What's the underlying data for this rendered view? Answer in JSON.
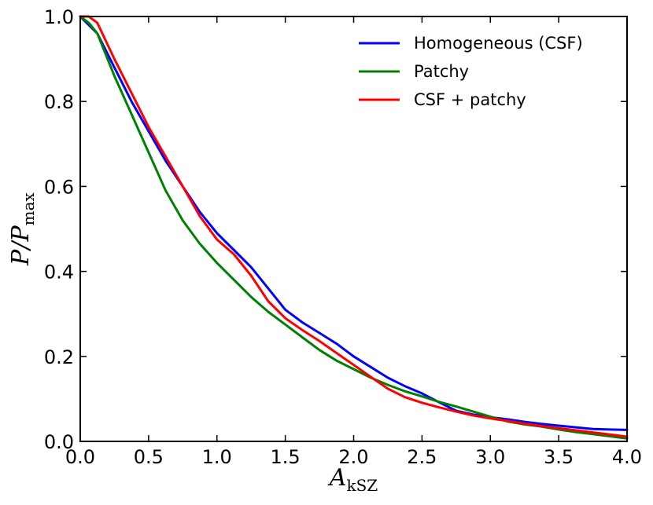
{
  "chart_data": {
    "type": "line",
    "title": "",
    "xlabel": "A",
    "xlabel_sub": "kSZ",
    "ylabel": "P/P",
    "ylabel_sub": "max",
    "xlim": [
      0.0,
      4.0
    ],
    "ylim": [
      0.0,
      1.0
    ],
    "xticks": [
      0.0,
      0.5,
      1.0,
      1.5,
      2.0,
      2.5,
      3.0,
      3.5,
      4.0
    ],
    "xtick_labels": [
      "0.0",
      "0.5",
      "1.0",
      "1.5",
      "2.0",
      "2.5",
      "3.0",
      "3.5",
      "4.0"
    ],
    "yticks": [
      0.0,
      0.2,
      0.4,
      0.6,
      0.8,
      1.0
    ],
    "ytick_labels": [
      "0.0",
      "0.2",
      "0.4",
      "0.6",
      "0.8",
      "1.0"
    ],
    "legend_position": "top-right",
    "grid": false,
    "series": [
      {
        "name": "Homogeneous (CSF)",
        "color": "#0000ff",
        "x": [
          0.0,
          0.125,
          0.25,
          0.375,
          0.5,
          0.625,
          0.75,
          0.875,
          1.0,
          1.125,
          1.25,
          1.375,
          1.5,
          1.625,
          1.75,
          1.875,
          2.0,
          2.125,
          2.25,
          2.375,
          2.5,
          2.625,
          2.75,
          2.875,
          3.0,
          3.125,
          3.25,
          3.375,
          3.5,
          3.625,
          3.75,
          3.875,
          4.0
        ],
        "values": [
          1.0,
          0.96,
          0.88,
          0.8,
          0.73,
          0.66,
          0.6,
          0.54,
          0.49,
          0.45,
          0.41,
          0.36,
          0.31,
          0.28,
          0.255,
          0.23,
          0.2,
          0.175,
          0.15,
          0.13,
          0.113,
          0.092,
          0.072,
          0.063,
          0.057,
          0.052,
          0.046,
          0.041,
          0.037,
          0.033,
          0.029,
          0.028,
          0.027
        ]
      },
      {
        "name": "Patchy",
        "color": "#008000",
        "x": [
          0.0,
          0.0625,
          0.125,
          0.25,
          0.375,
          0.5,
          0.625,
          0.75,
          0.875,
          1.0,
          1.125,
          1.25,
          1.375,
          1.5,
          1.625,
          1.75,
          1.875,
          2.0,
          2.125,
          2.25,
          2.375,
          2.5,
          2.625,
          2.75,
          2.875,
          3.0,
          3.125,
          3.25,
          3.375,
          3.5,
          3.625,
          3.75,
          3.875,
          4.0
        ],
        "values": [
          1.0,
          0.985,
          0.96,
          0.86,
          0.77,
          0.68,
          0.59,
          0.52,
          0.465,
          0.42,
          0.38,
          0.34,
          0.305,
          0.275,
          0.245,
          0.215,
          0.19,
          0.17,
          0.15,
          0.133,
          0.118,
          0.106,
          0.093,
          0.082,
          0.07,
          0.058,
          0.047,
          0.04,
          0.035,
          0.028,
          0.022,
          0.017,
          0.012,
          0.007
        ]
      },
      {
        "name": "CSF + patchy",
        "color": "#ff0000",
        "x": [
          0.0,
          0.0625,
          0.125,
          0.25,
          0.375,
          0.5,
          0.625,
          0.75,
          0.875,
          1.0,
          1.125,
          1.25,
          1.375,
          1.5,
          1.625,
          1.75,
          1.875,
          2.0,
          2.125,
          2.25,
          2.375,
          2.5,
          2.625,
          2.75,
          2.875,
          3.0,
          3.125,
          3.25,
          3.375,
          3.5,
          3.625,
          3.75,
          3.875,
          4.0
        ],
        "values": [
          1.0,
          1.0,
          0.985,
          0.9,
          0.82,
          0.74,
          0.67,
          0.6,
          0.53,
          0.475,
          0.44,
          0.39,
          0.33,
          0.29,
          0.262,
          0.236,
          0.208,
          0.18,
          0.152,
          0.124,
          0.104,
          0.091,
          0.08,
          0.07,
          0.061,
          0.054,
          0.048,
          0.042,
          0.036,
          0.031,
          0.026,
          0.021,
          0.016,
          0.011
        ]
      }
    ]
  }
}
